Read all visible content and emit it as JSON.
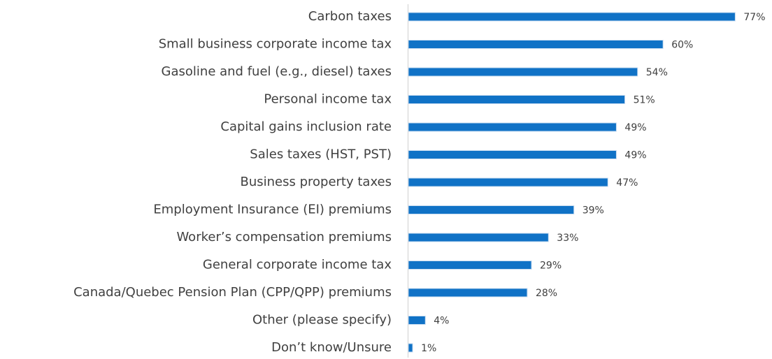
{
  "chart_data": {
    "type": "bar",
    "orientation": "horizontal",
    "color": "#1072c6",
    "categories": [
      "Carbon taxes",
      "Small business corporate income tax",
      "Gasoline and fuel (e.g., diesel) taxes",
      "Personal income tax",
      "Capital gains inclusion rate",
      "Sales taxes (HST, PST)",
      "Business property taxes",
      "Employment Insurance (EI) premiums",
      "Worker’s compensation premiums",
      "General corporate income tax",
      "Canada/Quebec Pension Plan (CPP/QPP) premiums",
      "Other (please specify)",
      "Don’t know/Unsure"
    ],
    "values": [
      77,
      60,
      54,
      51,
      49,
      49,
      47,
      39,
      33,
      29,
      28,
      4,
      1
    ],
    "value_labels": [
      "77%",
      "60%",
      "54%",
      "51%",
      "49%",
      "49%",
      "47%",
      "39%",
      "33%",
      "29%",
      "28%",
      "4%",
      "1%"
    ]
  }
}
